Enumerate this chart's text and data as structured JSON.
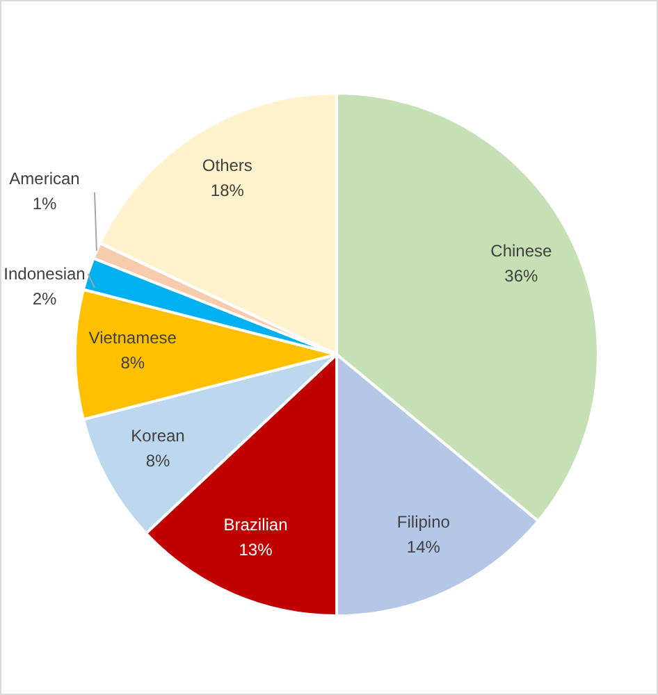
{
  "chart_data": {
    "type": "pie",
    "categories": [
      "Chinese",
      "Filipino",
      "Brazilian",
      "Korean",
      "Vietnamese",
      "Indonesian",
      "American",
      "Others"
    ],
    "values": [
      36,
      14,
      13,
      8,
      8,
      2,
      1,
      18
    ],
    "value_labels": [
      "36%",
      "14%",
      "13%",
      "8%",
      "8%",
      "2%",
      "1%",
      "18%"
    ],
    "colors": [
      "#c5e0b4",
      "#b4c7e7",
      "#c00000",
      "#bdd7ee",
      "#ffc000",
      "#00b0f0",
      "#f8cbad",
      "#fff2cc"
    ],
    "legend": false
  }
}
